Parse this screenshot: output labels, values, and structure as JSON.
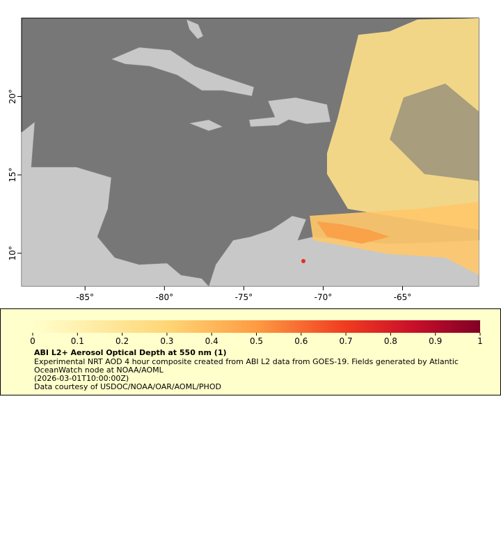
{
  "map": {
    "xlim": [
      -89,
      -60.2
    ],
    "ylim": [
      7.9,
      25
    ],
    "xticks": [
      {
        "value": -85,
        "label": "-85°"
      },
      {
        "value": -80,
        "label": "-80°"
      },
      {
        "value": -75,
        "label": "-75°"
      },
      {
        "value": -70,
        "label": "-70°"
      },
      {
        "value": -65,
        "label": "-65°"
      }
    ],
    "yticks": [
      {
        "value": 10,
        "label": "10°"
      },
      {
        "value": 15,
        "label": "15°"
      },
      {
        "value": 20,
        "label": "20°"
      }
    ]
  },
  "colorbar": {
    "range": [
      0,
      1
    ],
    "ticks": [
      0,
      0.1,
      0.2,
      0.3,
      0.4,
      0.5,
      0.6,
      0.7,
      0.8,
      0.9,
      1
    ]
  },
  "legend": {
    "title": "ABI L2+ Aerosol Optical Depth at 550 nm (1)",
    "lines": [
      "Experimental NRT AOD 4 hour composite created from ABI L2 data from GOES-19. Fields generated by Atlantic OceanWatch node at NOAA/AOML",
      "(2026-03-01T10:00:00Z)",
      "Data courtesy of USDOC/NOAA/OAR/AOML/PHOD"
    ]
  }
}
